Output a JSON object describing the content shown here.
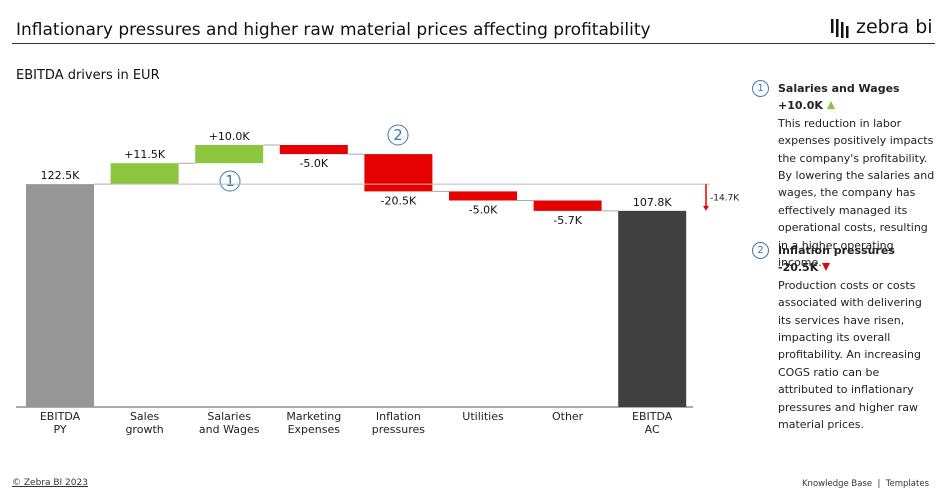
{
  "header": {
    "title": "Inflationary pressures and higher raw material prices affecting profitability",
    "logo": "zebra bi"
  },
  "chart_data": {
    "type": "waterfall",
    "subtitle": "EBITDA drivers in EUR",
    "categories": [
      "EBITDA\nPY",
      "Sales\ngrowth",
      "Salaries\nand Wages",
      "Marketing\nExpenses",
      "Inflation\npressures",
      "Utilities",
      "Other",
      "EBITDA\nAC"
    ],
    "values": [
      122.5,
      11.5,
      10.0,
      -5.0,
      -20.5,
      -5.0,
      -5.7,
      107.8
    ],
    "value_labels": [
      "122.5K",
      "+11.5K",
      "+10.0K",
      "-5.0K",
      "-20.5K",
      "-5.0K",
      "-5.7K",
      "107.8K"
    ],
    "bar_kinds": [
      "total",
      "delta",
      "delta",
      "delta",
      "delta",
      "delta",
      "delta",
      "total"
    ],
    "colors": {
      "first_total": "#969696",
      "last_total": "#404040",
      "increase": "#8cc63f",
      "decrease": "#e60000"
    },
    "difference": {
      "value": -14.7,
      "label": "-14.7K"
    },
    "markers": [
      "1",
      "2"
    ]
  },
  "notes": [
    {
      "marker": "1",
      "title": "Salaries and Wages +10.0K",
      "direction": "up",
      "text": "This reduction in labor expenses positively impacts the company's profitability. By lowering the salaries and wages, the company has effectively managed its operational costs, resulting in a higher operating income."
    },
    {
      "marker": "2",
      "title": "Inflation pressures -20.5K",
      "direction": "down",
      "text": "Production costs or costs associated with delivering its services have risen, impacting its overall profitability. An increasing COGS ratio can be attributed to inflationary pressures and higher raw material prices."
    }
  ],
  "footer": {
    "copyright": "© Zebra BI 2023",
    "links": [
      "Knowledge Base",
      "Templates"
    ]
  }
}
